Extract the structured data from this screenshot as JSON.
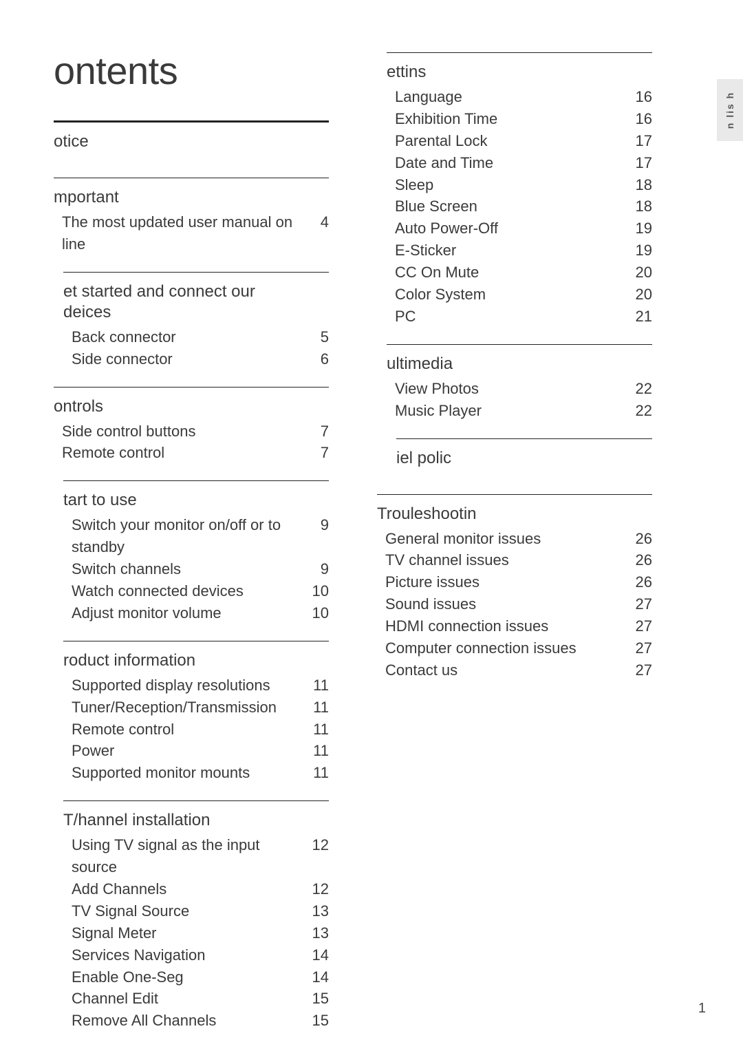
{
  "page_number": "1",
  "side_tab": "n lis h",
  "title": "ontents",
  "left_column": [
    {
      "title": "otice",
      "heavy": true,
      "indent": 0,
      "items": []
    },
    {
      "title": "mportant",
      "indent": 0,
      "items": [
        {
          "label": "The most updated user manual on line",
          "page": "4"
        }
      ]
    },
    {
      "title": "et started and connect our",
      "sub": "deices",
      "indent": 1,
      "items": [
        {
          "label": "Back connector",
          "page": "5"
        },
        {
          "label": "Side connector",
          "page": "6"
        }
      ]
    },
    {
      "title": "ontrols",
      "indent": 0,
      "items": [
        {
          "label": "Side control buttons",
          "page": "7"
        },
        {
          "label": "Remote control",
          "page": "7"
        }
      ]
    },
    {
      "title": "tart to use",
      "indent": 1,
      "items": [
        {
          "label": "Switch your monitor on/off or to standby",
          "page": "9"
        },
        {
          "label": "Switch channels",
          "page": "9"
        },
        {
          "label": "Watch connected devices",
          "page": "10"
        },
        {
          "label": "Adjust monitor volume",
          "page": "10"
        }
      ]
    },
    {
      "title": "roduct information",
      "indent": 1,
      "items": [
        {
          "label": "Supported display resolutions",
          "page": "11"
        },
        {
          "label": "Tuner/Reception/Transmission",
          "page": "11"
        },
        {
          "label": "Remote control",
          "page": "11"
        },
        {
          "label": "Power",
          "page": "11"
        },
        {
          "label": "Supported monitor mounts",
          "page": "11"
        }
      ]
    },
    {
      "title": "T/hannel installation",
      "indent": 1,
      "items": [
        {
          "label": "Using TV signal as the input source",
          "page": "12"
        },
        {
          "label": "Add Channels",
          "page": "12"
        },
        {
          "label": "TV Signal Source",
          "page": "13"
        },
        {
          "label": "Signal Meter",
          "page": "13"
        },
        {
          "label": "Services Navigation",
          "page": "14"
        },
        {
          "label": "Enable One-Seg",
          "page": "14"
        },
        {
          "label": "Channel Edit",
          "page": "15"
        },
        {
          "label": "Remove All Channels",
          "page": "15"
        }
      ]
    }
  ],
  "right_column": [
    {
      "title": "ettins",
      "indent": 1,
      "items": [
        {
          "label": "Language",
          "page": "16"
        },
        {
          "label": "Exhibition Time",
          "page": "16"
        },
        {
          "label": "Parental Lock",
          "page": "17"
        },
        {
          "label": "Date and Time",
          "page": "17"
        },
        {
          "label": "Sleep",
          "page": "18"
        },
        {
          "label": "Blue Screen",
          "page": "18"
        },
        {
          "label": "Auto Power-Off",
          "page": "19"
        },
        {
          "label": "E-Sticker",
          "page": "19"
        },
        {
          "label": "CC On Mute",
          "page": "20"
        },
        {
          "label": "Color System",
          "page": "20"
        },
        {
          "label": "PC",
          "page": "21"
        }
      ]
    },
    {
      "title": "ultimedia",
      "indent": 1,
      "items": [
        {
          "label": "View Photos",
          "page": "22"
        },
        {
          "label": "Music Player",
          "page": "22"
        }
      ]
    },
    {
      "title": "iel polic",
      "indent": 2,
      "items": []
    },
    {
      "title": "Trouleshootin",
      "indent": 0,
      "items": [
        {
          "label": "General monitor issues",
          "page": "26"
        },
        {
          "label": "TV channel issues",
          "page": "26"
        },
        {
          "label": "Picture issues",
          "page": "26"
        },
        {
          "label": "Sound issues",
          "page": "27"
        },
        {
          "label": "HDMI connection issues",
          "page": "27"
        },
        {
          "label": "Computer connection issues",
          "page": "27"
        },
        {
          "label": "Contact us",
          "page": "27"
        }
      ]
    }
  ]
}
